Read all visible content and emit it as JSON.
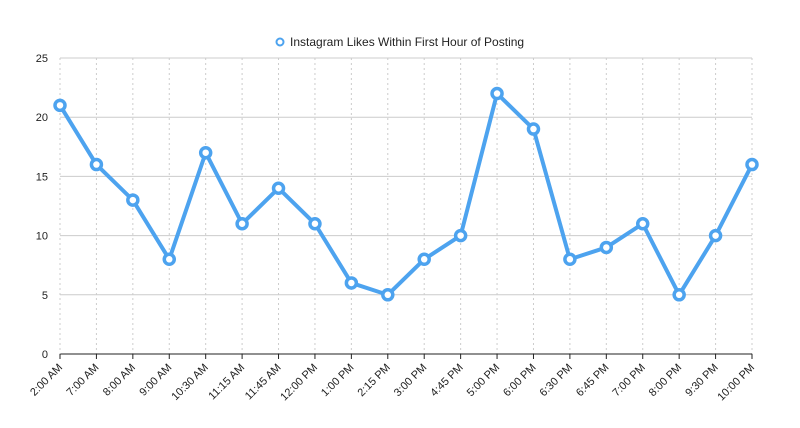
{
  "chart_data": {
    "type": "line",
    "title": "",
    "xlabel": "",
    "ylabel": "",
    "categories": [
      "2:00 AM",
      "7:00 AM",
      "8:00 AM",
      "9:00 AM",
      "10:30 AM",
      "11:15 AM",
      "11:45 AM",
      "12:00 PM",
      "1:00 PM",
      "2:15 PM",
      "3:00 PM",
      "4:45 PM",
      "5:00 PM",
      "6:00 PM",
      "6:30 PM",
      "6:45 PM",
      "7:00 PM",
      "8:00 PM",
      "9:30 PM",
      "10:00 PM"
    ],
    "series": [
      {
        "name": "Instagram Likes Within First Hour of Posting",
        "values": [
          21,
          16,
          13,
          8,
          17,
          11,
          14,
          11,
          6,
          5,
          8,
          10,
          22,
          19,
          8,
          9,
          11,
          5,
          10,
          16
        ]
      }
    ],
    "ylim": [
      0,
      25
    ],
    "yticks": [
      0,
      5,
      10,
      15,
      20,
      25
    ],
    "grid": true,
    "legend_position": "top-center",
    "colors": {
      "series": "#4da3ef",
      "grid": "#cccccc",
      "axis": "#222222",
      "marker_fill": "#ffffff"
    }
  }
}
